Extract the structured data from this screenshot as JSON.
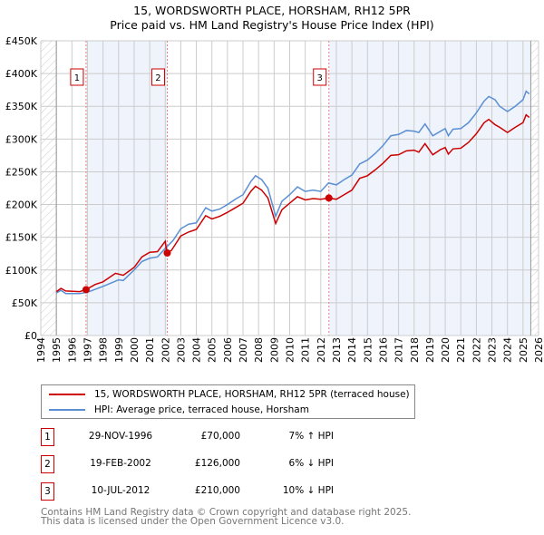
{
  "chart_data": {
    "type": "line",
    "title": "15, WORDSWORTH PLACE, HORSHAM, RH12 5PR",
    "subtitle": "Price paid vs. HM Land Registry's House Price Index (HPI)",
    "xlim": [
      1994,
      2026
    ],
    "ylim": [
      0,
      450000
    ],
    "x_ticks": [
      "1994",
      "1995",
      "1996",
      "1997",
      "1998",
      "1999",
      "2000",
      "2001",
      "2002",
      "2003",
      "2004",
      "2005",
      "2006",
      "2007",
      "2008",
      "2009",
      "2010",
      "2011",
      "2012",
      "2013",
      "2014",
      "2015",
      "2016",
      "2017",
      "2018",
      "2019",
      "2020",
      "2021",
      "2022",
      "2023",
      "2024",
      "2025",
      "2026"
    ],
    "y_ticks": [
      {
        "v": 0,
        "l": "£0"
      },
      {
        "v": 50000,
        "l": "£50K"
      },
      {
        "v": 100000,
        "l": "£100K"
      },
      {
        "v": 150000,
        "l": "£150K"
      },
      {
        "v": 200000,
        "l": "£200K"
      },
      {
        "v": 250000,
        "l": "£250K"
      },
      {
        "v": 300000,
        "l": "£300K"
      },
      {
        "v": 350000,
        "l": "£350K"
      },
      {
        "v": 400000,
        "l": "£400K"
      },
      {
        "v": 450000,
        "l": "£450K"
      }
    ],
    "grid": true,
    "series": [
      {
        "name": "15, WORDSWORTH PLACE, HORSHAM, RH12 5PR (terraced house)",
        "color": "#cc0000",
        "points": [
          [
            1995,
            67
          ],
          [
            1995.3,
            72
          ],
          [
            1995.6,
            68
          ],
          [
            1996.5,
            67
          ],
          [
            1996.9,
            70
          ],
          [
            1997.5,
            78
          ],
          [
            1998,
            82
          ],
          [
            1998.8,
            95
          ],
          [
            1999.3,
            92
          ],
          [
            2000,
            104
          ],
          [
            2000.5,
            120
          ],
          [
            2001,
            127
          ],
          [
            2001.5,
            128
          ],
          [
            2002,
            144
          ],
          [
            2002.1,
            126
          ],
          [
            2002.4,
            130
          ],
          [
            2003,
            152
          ],
          [
            2003.5,
            158
          ],
          [
            2004,
            162
          ],
          [
            2004.6,
            183
          ],
          [
            2005,
            178
          ],
          [
            2005.5,
            182
          ],
          [
            2006,
            188
          ],
          [
            2006.5,
            195
          ],
          [
            2007,
            202
          ],
          [
            2007.5,
            220
          ],
          [
            2007.8,
            228
          ],
          [
            2008.2,
            222
          ],
          [
            2008.6,
            210
          ],
          [
            2009.1,
            171
          ],
          [
            2009.5,
            192
          ],
          [
            2010,
            202
          ],
          [
            2010.5,
            212
          ],
          [
            2011,
            207
          ],
          [
            2011.5,
            209
          ],
          [
            2012,
            208
          ],
          [
            2012.53,
            210
          ],
          [
            2013,
            208
          ],
          [
            2013.5,
            215
          ],
          [
            2014,
            222
          ],
          [
            2014.5,
            240
          ],
          [
            2015,
            244
          ],
          [
            2015.5,
            253
          ],
          [
            2016,
            263
          ],
          [
            2016.5,
            275
          ],
          [
            2017,
            276
          ],
          [
            2017.5,
            282
          ],
          [
            2018,
            283
          ],
          [
            2018.3,
            280
          ],
          [
            2018.7,
            293
          ],
          [
            2019.2,
            276
          ],
          [
            2019.7,
            284
          ],
          [
            2020,
            287
          ],
          [
            2020.2,
            277
          ],
          [
            2020.5,
            285
          ],
          [
            2021,
            286
          ],
          [
            2021.5,
            295
          ],
          [
            2022,
            308
          ],
          [
            2022.5,
            325
          ],
          [
            2022.8,
            330
          ],
          [
            2023.2,
            322
          ],
          [
            2023.5,
            318
          ],
          [
            2024,
            310
          ],
          [
            2024.5,
            318
          ],
          [
            2025,
            325
          ],
          [
            2025.2,
            337
          ],
          [
            2025.4,
            333
          ]
        ]
      },
      {
        "name": "HPI: Average price, terraced house, Horsham",
        "color": "#5b8fd4",
        "points": [
          [
            1995,
            65
          ],
          [
            1995.3,
            69
          ],
          [
            1995.6,
            64
          ],
          [
            1996.5,
            64
          ],
          [
            1997,
            66
          ],
          [
            1998,
            75
          ],
          [
            1999,
            85
          ],
          [
            1999.3,
            84
          ],
          [
            2000,
            100
          ],
          [
            2000.5,
            113
          ],
          [
            2001,
            118
          ],
          [
            2001.5,
            120
          ],
          [
            2002,
            133
          ],
          [
            2002.5,
            145
          ],
          [
            2003,
            163
          ],
          [
            2003.5,
            170
          ],
          [
            2004,
            172
          ],
          [
            2004.6,
            195
          ],
          [
            2005,
            190
          ],
          [
            2005.5,
            193
          ],
          [
            2006,
            200
          ],
          [
            2006.5,
            208
          ],
          [
            2007,
            215
          ],
          [
            2007.5,
            235
          ],
          [
            2007.8,
            244
          ],
          [
            2008.2,
            238
          ],
          [
            2008.6,
            225
          ],
          [
            2009.1,
            182
          ],
          [
            2009.5,
            205
          ],
          [
            2010,
            215
          ],
          [
            2010.5,
            227
          ],
          [
            2011,
            220
          ],
          [
            2011.5,
            222
          ],
          [
            2012,
            220
          ],
          [
            2012.5,
            233
          ],
          [
            2013,
            230
          ],
          [
            2013.5,
            238
          ],
          [
            2014,
            245
          ],
          [
            2014.5,
            262
          ],
          [
            2015,
            268
          ],
          [
            2015.5,
            278
          ],
          [
            2016,
            290
          ],
          [
            2016.5,
            305
          ],
          [
            2017,
            307
          ],
          [
            2017.5,
            313
          ],
          [
            2018,
            312
          ],
          [
            2018.3,
            310
          ],
          [
            2018.7,
            323
          ],
          [
            2019.2,
            305
          ],
          [
            2019.7,
            312
          ],
          [
            2020,
            316
          ],
          [
            2020.2,
            305
          ],
          [
            2020.5,
            315
          ],
          [
            2021,
            316
          ],
          [
            2021.5,
            325
          ],
          [
            2022,
            340
          ],
          [
            2022.5,
            358
          ],
          [
            2022.8,
            365
          ],
          [
            2023.2,
            360
          ],
          [
            2023.5,
            350
          ],
          [
            2024,
            342
          ],
          [
            2024.5,
            350
          ],
          [
            2025,
            360
          ],
          [
            2025.2,
            373
          ],
          [
            2025.4,
            369
          ]
        ]
      }
    ],
    "sales": [
      {
        "label": "1",
        "x": 1996.91,
        "price": 70000,
        "date": "29-NOV-1996",
        "price_text": "£70,000",
        "hpi": "7% ↑ HPI"
      },
      {
        "label": "2",
        "x": 2002.13,
        "price": 126000,
        "date": "19-FEB-2002",
        "price_text": "£126,000",
        "hpi": "6% ↓ HPI"
      },
      {
        "label": "3",
        "x": 2012.52,
        "price": 210000,
        "date": "10-JUL-2012",
        "price_text": "£210,000",
        "hpi": "10% ↓ HPI"
      }
    ],
    "data_end": 2025.5
  },
  "footer": [
    "Contains HM Land Registry data © Crown copyright and database right 2025.",
    "This data is licensed under the Open Government Licence v3.0."
  ]
}
